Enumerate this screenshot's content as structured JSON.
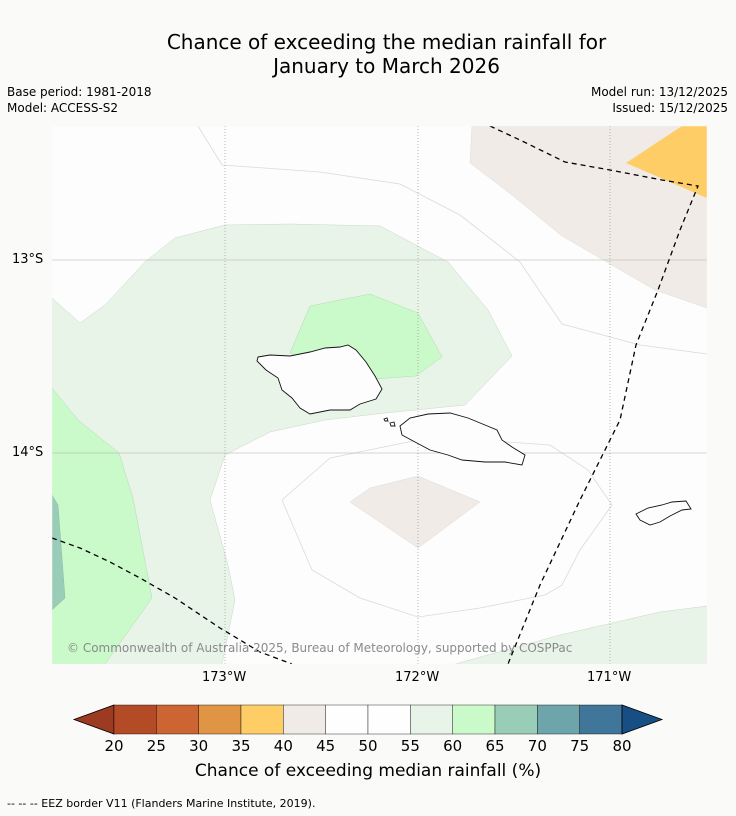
{
  "title_line1": "Chance of exceeding the median rainfall for",
  "title_line2": "January to March 2026",
  "meta_left": [
    "Base period: 1981-2018",
    "Model: ACCESS-S2"
  ],
  "meta_right": [
    "Model run: 13/12/2025",
    "Issued: 15/12/2025"
  ],
  "latitude_labels": [
    "13°S",
    "14°S"
  ],
  "longitude_labels": [
    "173°W",
    "172°W",
    "171°W"
  ],
  "copyright": "© Commonwealth of Australia 2025, Bureau of Meteorology, supported by COSPPac",
  "colorbar": {
    "title": "Chance of exceeding median rainfall (%)",
    "ticks": [
      "20",
      "25",
      "30",
      "35",
      "40",
      "45",
      "50",
      "55",
      "60",
      "65",
      "70",
      "75",
      "80"
    ],
    "colors": [
      "#9c3a22",
      "#b34b27",
      "#cc6533",
      "#e09545",
      "#fecd66",
      "#f0ebe6",
      "#fdfefd",
      "#fdfefd",
      "#e9f4e9",
      "#caf9ca",
      "#9acdb8",
      "#6ea5aa",
      "#3f7699",
      "#174e84"
    ]
  },
  "footnote": "--  --  -- EEZ border V11 (Flanders Marine Institute, 2019)."
}
